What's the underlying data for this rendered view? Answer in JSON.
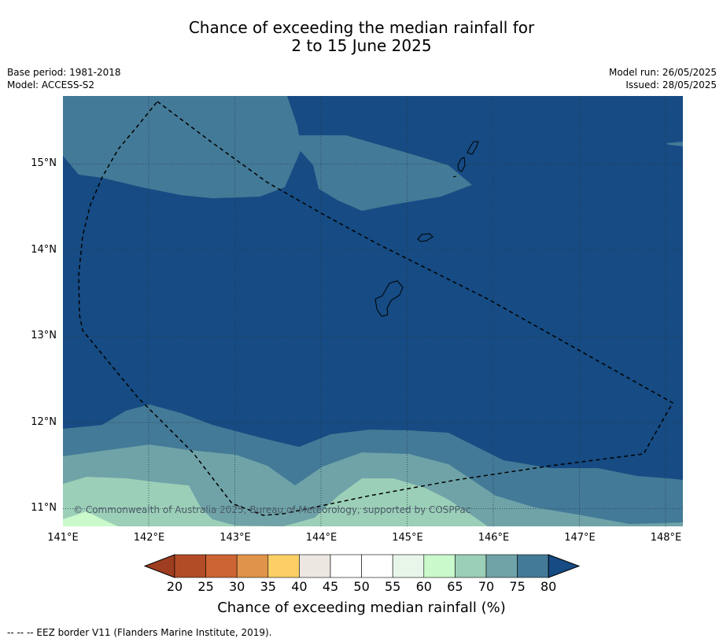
{
  "title": {
    "line1": "Chance of exceeding the median rainfall for",
    "line2": "2 to 15 June 2025"
  },
  "meta": {
    "base_period": "Base period: 1981-2018",
    "model": "Model: ACCESS-S2",
    "model_run": "Model run: 26/05/2025",
    "issued": "Issued: 28/05/2025"
  },
  "map": {
    "lon_labels": [
      "141°E",
      "142°E",
      "143°E",
      "144°E",
      "145°E",
      "146°E",
      "147°E",
      "148°E"
    ],
    "lat_labels": [
      "15°N",
      "14°N",
      "13°N",
      "12°N",
      "11°N"
    ],
    "copyright": "© Commonwealth of Australia 2025, Bureau of Meteorology, supported by COSPPac",
    "lon_range": [
      141,
      148.2
    ],
    "lat_range": [
      10.8,
      15.8
    ]
  },
  "colorbar": {
    "ticks": [
      "20",
      "25",
      "30",
      "35",
      "40",
      "45",
      "50",
      "55",
      "60",
      "65",
      "70",
      "75",
      "80"
    ],
    "colors": [
      "#b24c27",
      "#cc6533",
      "#e0944a",
      "#fbcf66",
      "#ece7e1",
      "#ffffff",
      "#ffffff",
      "#e8f6ea",
      "#caf9cb",
      "#9ccfb7",
      "#6fa3a8",
      "#437a97"
    ],
    "under_color": "#9e3d1f",
    "over_color": "#164b83",
    "label": "Chance of exceeding median rainfall (%)"
  },
  "footnote": "--  --  -- EEZ border V11 (Flanders Marine Institute, 2019)."
}
